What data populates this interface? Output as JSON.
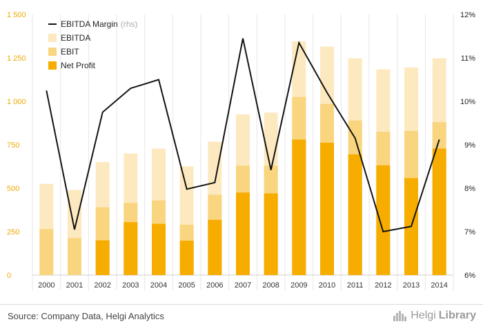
{
  "chart_data": {
    "type": "bar",
    "categories": [
      "2000",
      "2001",
      "2002",
      "2003",
      "2004",
      "2005",
      "2006",
      "2007",
      "2008",
      "2009",
      "2010",
      "2011",
      "2012",
      "2013",
      "2014"
    ],
    "series": [
      {
        "name": "EBITDA",
        "kind": "bar",
        "color": "#fde9bf",
        "values": [
          525,
          490,
          650,
          700,
          728,
          625,
          768,
          925,
          935,
          1345,
          1315,
          1248,
          1185,
          1195,
          1248
        ]
      },
      {
        "name": "EBIT",
        "kind": "bar",
        "color": "#fad57f",
        "values": [
          265,
          213,
          390,
          415,
          430,
          290,
          462,
          630,
          630,
          1025,
          985,
          890,
          825,
          830,
          880
        ]
      },
      {
        "name": "Net Profit",
        "kind": "bar",
        "color": "#f7ac00",
        "values": [
          0,
          0,
          200,
          305,
          295,
          198,
          318,
          475,
          470,
          780,
          762,
          695,
          632,
          558,
          728
        ]
      },
      {
        "name": "EBITDA Margin",
        "kind": "line",
        "axis": "right",
        "color": "#111111",
        "values": [
          10.25,
          7.05,
          9.75,
          10.3,
          10.5,
          7.98,
          8.13,
          11.45,
          8.42,
          11.35,
          10.2,
          9.15,
          7.0,
          7.12,
          9.12
        ]
      }
    ],
    "legend": {
      "items": [
        {
          "label": "EBITDA Margin",
          "suffix": "(rhs)",
          "marker": "line",
          "color": "#111111"
        },
        {
          "label": "EBITDA",
          "marker": "box",
          "color": "#fde9bf"
        },
        {
          "label": "EBIT",
          "marker": "box",
          "color": "#fad57f"
        },
        {
          "label": "Net Profit",
          "marker": "box",
          "color": "#f7ac00"
        }
      ],
      "placement": "top-left"
    },
    "ylim": [
      0,
      1500
    ],
    "y_ticks": [
      "0",
      "250",
      "500",
      "750",
      "1 000",
      "1 250",
      "1 500"
    ],
    "y2lim": [
      6,
      12
    ],
    "y2_ticks": [
      "6%",
      "7%",
      "8%",
      "9%",
      "10%",
      "11%",
      "12%"
    ],
    "y_tick_color": "#f0a800",
    "grid": "vertical"
  },
  "footer": {
    "source": "Source: Company Data, Helgi Analytics",
    "brand_regular": "Helgi",
    "brand_bold": "Library"
  }
}
